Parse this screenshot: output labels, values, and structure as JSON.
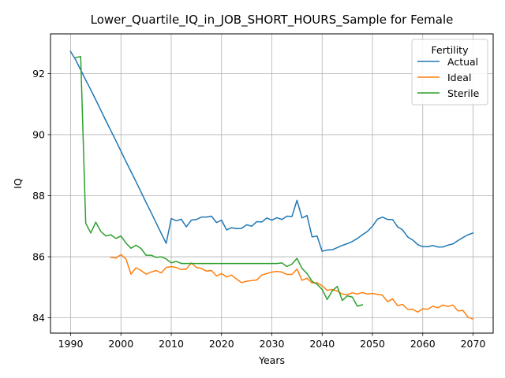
{
  "chart_data": {
    "type": "line",
    "title": "Lower_Quartile_IQ_in_JOB_SHORT_HOURS_Sample for Female",
    "xlabel": "Years",
    "ylabel": "IQ",
    "xlim": [
      1986,
      2074
    ],
    "ylim": [
      83.5,
      93.3
    ],
    "xticks": [
      1990,
      2000,
      2010,
      2020,
      2030,
      2040,
      2050,
      2060,
      2070
    ],
    "yticks": [
      84,
      86,
      88,
      90,
      92
    ],
    "grid": true,
    "legend": {
      "title": "Fertility",
      "placement": "top-right"
    },
    "series": [
      {
        "name": "Actual",
        "color": "#1f77b4",
        "points": [
          [
            1990,
            92.72
          ],
          [
            1991,
            92.45
          ],
          [
            1992,
            92.12
          ],
          [
            1993,
            91.79
          ],
          [
            1994,
            91.47
          ],
          [
            1995,
            91.14
          ],
          [
            1996,
            90.8
          ],
          [
            1997,
            90.46
          ],
          [
            1998,
            90.13
          ],
          [
            1999,
            89.8
          ],
          [
            2000,
            89.46
          ],
          [
            2001,
            89.12
          ],
          [
            2002,
            88.79
          ],
          [
            2003,
            88.46
          ],
          [
            2004,
            88.12
          ],
          [
            2005,
            87.78
          ],
          [
            2006,
            87.45
          ],
          [
            2007,
            87.11
          ],
          [
            2008,
            86.77
          ],
          [
            2009,
            86.44
          ],
          [
            2010,
            87.25
          ],
          [
            2011,
            87.18
          ],
          [
            2012,
            87.23
          ],
          [
            2013,
            86.98
          ],
          [
            2014,
            87.2
          ],
          [
            2015,
            87.22
          ],
          [
            2016,
            87.3
          ],
          [
            2017,
            87.3
          ],
          [
            2018,
            87.33
          ],
          [
            2019,
            87.12
          ],
          [
            2020,
            87.2
          ],
          [
            2021,
            86.88
          ],
          [
            2022,
            86.95
          ],
          [
            2023,
            86.92
          ],
          [
            2024,
            86.93
          ],
          [
            2025,
            87.05
          ],
          [
            2026,
            87.0
          ],
          [
            2027,
            87.15
          ],
          [
            2028,
            87.14
          ],
          [
            2029,
            87.27
          ],
          [
            2030,
            87.2
          ],
          [
            2031,
            87.28
          ],
          [
            2032,
            87.22
          ],
          [
            2033,
            87.33
          ],
          [
            2034,
            87.32
          ],
          [
            2035,
            87.85
          ],
          [
            2036,
            87.27
          ],
          [
            2037,
            87.35
          ],
          [
            2038,
            86.65
          ],
          [
            2039,
            86.68
          ],
          [
            2040,
            86.18
          ],
          [
            2041,
            86.22
          ],
          [
            2042,
            86.23
          ],
          [
            2043,
            86.3
          ],
          [
            2044,
            86.37
          ],
          [
            2045,
            86.43
          ],
          [
            2046,
            86.5
          ],
          [
            2047,
            86.6
          ],
          [
            2048,
            86.72
          ],
          [
            2049,
            86.83
          ],
          [
            2050,
            87.0
          ],
          [
            2051,
            87.23
          ],
          [
            2052,
            87.3
          ],
          [
            2053,
            87.22
          ],
          [
            2054,
            87.22
          ],
          [
            2055,
            86.98
          ],
          [
            2056,
            86.88
          ],
          [
            2057,
            86.65
          ],
          [
            2058,
            86.55
          ],
          [
            2059,
            86.4
          ],
          [
            2060,
            86.33
          ],
          [
            2061,
            86.33
          ],
          [
            2062,
            86.37
          ],
          [
            2063,
            86.32
          ],
          [
            2064,
            86.32
          ],
          [
            2065,
            86.38
          ],
          [
            2066,
            86.42
          ],
          [
            2067,
            86.53
          ],
          [
            2068,
            86.63
          ],
          [
            2069,
            86.72
          ],
          [
            2070,
            86.78
          ]
        ]
      },
      {
        "name": "Ideal",
        "color": "#ff7f0e",
        "points": [
          [
            1998,
            85.98
          ],
          [
            1999,
            85.96
          ],
          [
            2000,
            86.07
          ],
          [
            2001,
            85.93
          ],
          [
            2002,
            85.43
          ],
          [
            2003,
            85.64
          ],
          [
            2004,
            85.55
          ],
          [
            2005,
            85.43
          ],
          [
            2006,
            85.5
          ],
          [
            2007,
            85.55
          ],
          [
            2008,
            85.47
          ],
          [
            2009,
            85.65
          ],
          [
            2010,
            85.68
          ],
          [
            2011,
            85.65
          ],
          [
            2012,
            85.58
          ],
          [
            2013,
            85.6
          ],
          [
            2014,
            85.8
          ],
          [
            2015,
            85.65
          ],
          [
            2016,
            85.62
          ],
          [
            2017,
            85.53
          ],
          [
            2018,
            85.55
          ],
          [
            2019,
            85.37
          ],
          [
            2020,
            85.45
          ],
          [
            2021,
            85.34
          ],
          [
            2022,
            85.4
          ],
          [
            2023,
            85.27
          ],
          [
            2024,
            85.15
          ],
          [
            2025,
            85.2
          ],
          [
            2026,
            85.22
          ],
          [
            2027,
            85.24
          ],
          [
            2028,
            85.4
          ],
          [
            2029,
            85.45
          ],
          [
            2030,
            85.5
          ],
          [
            2031,
            85.52
          ],
          [
            2032,
            85.5
          ],
          [
            2033,
            85.42
          ],
          [
            2034,
            85.42
          ],
          [
            2035,
            85.6
          ],
          [
            2036,
            85.23
          ],
          [
            2037,
            85.3
          ],
          [
            2038,
            85.14
          ],
          [
            2039,
            85.15
          ],
          [
            2040,
            85.05
          ],
          [
            2041,
            84.9
          ],
          [
            2042,
            84.93
          ],
          [
            2043,
            84.88
          ],
          [
            2044,
            84.78
          ],
          [
            2045,
            84.76
          ],
          [
            2046,
            84.82
          ],
          [
            2047,
            84.78
          ],
          [
            2048,
            84.83
          ],
          [
            2049,
            84.78
          ],
          [
            2050,
            84.8
          ],
          [
            2051,
            84.77
          ],
          [
            2052,
            84.74
          ],
          [
            2053,
            84.53
          ],
          [
            2054,
            84.62
          ],
          [
            2055,
            84.4
          ],
          [
            2056,
            84.44
          ],
          [
            2057,
            84.28
          ],
          [
            2058,
            84.28
          ],
          [
            2059,
            84.19
          ],
          [
            2060,
            84.3
          ],
          [
            2061,
            84.28
          ],
          [
            2062,
            84.38
          ],
          [
            2063,
            84.33
          ],
          [
            2064,
            84.42
          ],
          [
            2065,
            84.37
          ],
          [
            2066,
            84.42
          ],
          [
            2067,
            84.23
          ],
          [
            2068,
            84.24
          ],
          [
            2069,
            84.02
          ],
          [
            2070,
            83.96
          ]
        ]
      },
      {
        "name": "Sterile",
        "color": "#2ca02c",
        "points": [
          [
            1991,
            92.52
          ],
          [
            1992,
            92.56
          ],
          [
            1993,
            87.1
          ],
          [
            1994,
            86.78
          ],
          [
            1995,
            87.13
          ],
          [
            1996,
            86.83
          ],
          [
            1997,
            86.68
          ],
          [
            1998,
            86.72
          ],
          [
            1999,
            86.6
          ],
          [
            2000,
            86.68
          ],
          [
            2001,
            86.45
          ],
          [
            2002,
            86.28
          ],
          [
            2003,
            86.38
          ],
          [
            2004,
            86.27
          ],
          [
            2005,
            86.05
          ],
          [
            2006,
            86.05
          ],
          [
            2007,
            85.98
          ],
          [
            2008,
            86.0
          ],
          [
            2009,
            85.93
          ],
          [
            2010,
            85.8
          ],
          [
            2011,
            85.85
          ],
          [
            2012,
            85.78
          ],
          [
            2013,
            85.78
          ],
          [
            2014,
            85.78
          ],
          [
            2015,
            85.78
          ],
          [
            2016,
            85.78
          ],
          [
            2017,
            85.78
          ],
          [
            2018,
            85.78
          ],
          [
            2019,
            85.78
          ],
          [
            2020,
            85.78
          ],
          [
            2021,
            85.78
          ],
          [
            2022,
            85.78
          ],
          [
            2023,
            85.78
          ],
          [
            2024,
            85.78
          ],
          [
            2025,
            85.78
          ],
          [
            2026,
            85.78
          ],
          [
            2027,
            85.78
          ],
          [
            2028,
            85.78
          ],
          [
            2029,
            85.78
          ],
          [
            2030,
            85.78
          ],
          [
            2031,
            85.78
          ],
          [
            2032,
            85.8
          ],
          [
            2033,
            85.68
          ],
          [
            2034,
            85.76
          ],
          [
            2035,
            85.95
          ],
          [
            2036,
            85.62
          ],
          [
            2037,
            85.45
          ],
          [
            2038,
            85.2
          ],
          [
            2039,
            85.1
          ],
          [
            2040,
            84.93
          ],
          [
            2041,
            84.6
          ],
          [
            2042,
            84.88
          ],
          [
            2043,
            85.03
          ],
          [
            2044,
            84.57
          ],
          [
            2045,
            84.72
          ],
          [
            2046,
            84.68
          ],
          [
            2047,
            84.38
          ],
          [
            2048,
            84.43
          ]
        ]
      }
    ]
  }
}
